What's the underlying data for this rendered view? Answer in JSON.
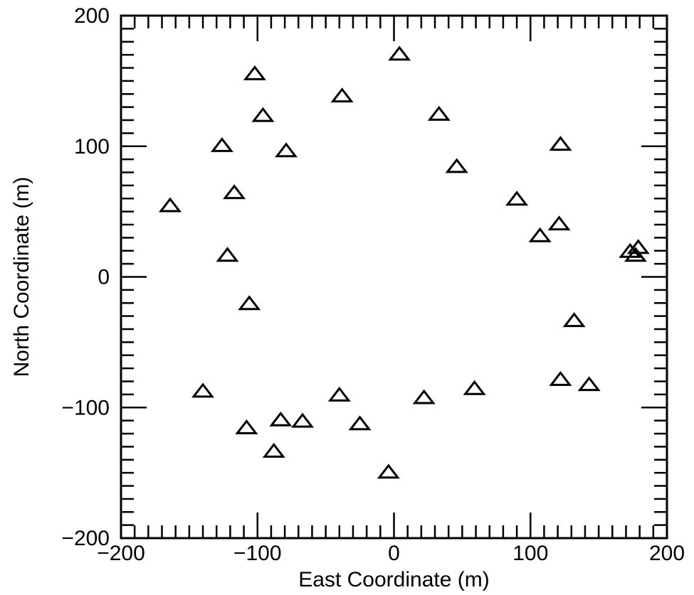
{
  "chart_data": {
    "type": "scatter",
    "marker": "open-triangle",
    "xlabel": "East Coordinate (m)",
    "ylabel": "North Coordinate (m)",
    "xlim": [
      -200,
      200
    ],
    "ylim": [
      -200,
      200
    ],
    "xticks": [
      -200,
      -100,
      0,
      100,
      200
    ],
    "yticks": [
      -200,
      -100,
      0,
      100,
      200
    ],
    "xtick_labels": [
      "−200",
      "−100",
      "0",
      "100",
      "200"
    ],
    "ytick_labels": [
      "−200",
      "−100",
      "0",
      "100",
      "200"
    ],
    "minor_tick_step": 10,
    "grid": false,
    "points": [
      {
        "x": 4,
        "y": 171
      },
      {
        "x": -102,
        "y": 156
      },
      {
        "x": -38,
        "y": 139
      },
      {
        "x": -96,
        "y": 124
      },
      {
        "x": 33,
        "y": 125
      },
      {
        "x": -126,
        "y": 101
      },
      {
        "x": -79,
        "y": 97
      },
      {
        "x": 122,
        "y": 102
      },
      {
        "x": 46,
        "y": 85
      },
      {
        "x": -117,
        "y": 65
      },
      {
        "x": -164,
        "y": 55
      },
      {
        "x": 90,
        "y": 60
      },
      {
        "x": 121,
        "y": 41
      },
      {
        "x": 107,
        "y": 32
      },
      {
        "x": -122,
        "y": 17
      },
      {
        "x": 179,
        "y": 23
      },
      {
        "x": 173,
        "y": 20
      },
      {
        "x": 177,
        "y": 17
      },
      {
        "x": -106,
        "y": -20
      },
      {
        "x": 132,
        "y": -33
      },
      {
        "x": -140,
        "y": -87
      },
      {
        "x": 122,
        "y": -78
      },
      {
        "x": 143,
        "y": -82
      },
      {
        "x": 59,
        "y": -85
      },
      {
        "x": -40,
        "y": -90
      },
      {
        "x": 22,
        "y": -92
      },
      {
        "x": -83,
        "y": -109
      },
      {
        "x": -67,
        "y": -110
      },
      {
        "x": -25,
        "y": -112
      },
      {
        "x": -108,
        "y": -115
      },
      {
        "x": -88,
        "y": -133
      },
      {
        "x": -4,
        "y": -149
      }
    ]
  }
}
